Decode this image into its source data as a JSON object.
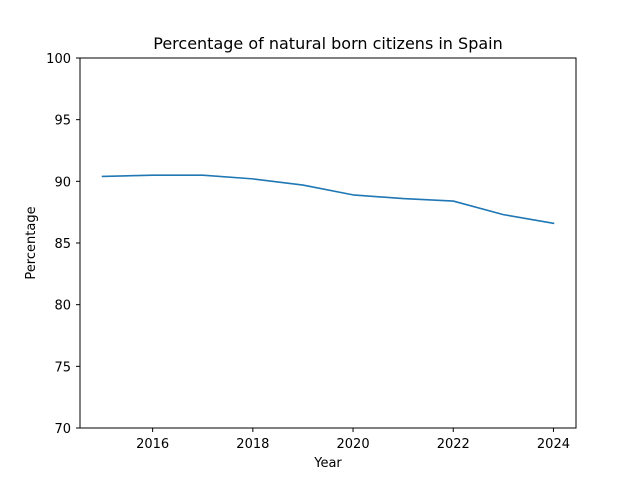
{
  "chart_data": {
    "type": "line",
    "title": "Percentage of natural born citizens in Spain",
    "xlabel": "Year",
    "ylabel": "Percentage",
    "x": [
      2015,
      2016,
      2017,
      2018,
      2019,
      2020,
      2021,
      2022,
      2023,
      2024
    ],
    "series": [
      {
        "values": [
          90.4,
          90.5,
          90.5,
          90.2,
          89.7,
          88.9,
          88.6,
          88.4,
          87.3,
          86.6
        ],
        "color": "#1f77b4"
      }
    ],
    "xlim": [
      2014.55,
      2024.45
    ],
    "ylim": [
      70,
      100
    ],
    "xticks": [
      2016,
      2018,
      2020,
      2022,
      2024
    ],
    "yticks": [
      70,
      75,
      80,
      85,
      90,
      95,
      100
    ],
    "grid": false,
    "legend": false
  }
}
